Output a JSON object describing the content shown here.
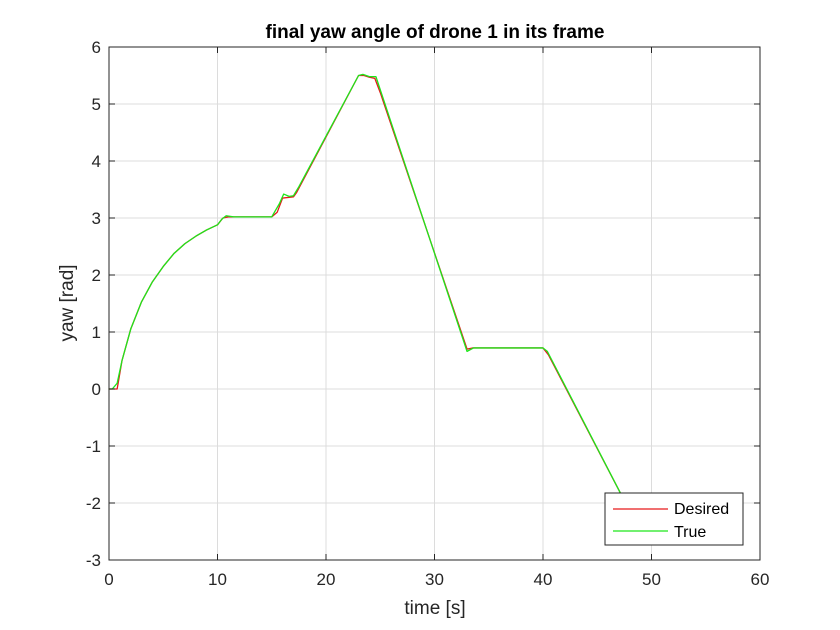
{
  "chart_data": {
    "type": "line",
    "title": "final yaw angle of drone 1 in its frame",
    "xlabel": "time [s]",
    "ylabel": "yaw [rad]",
    "xlim": [
      0,
      60
    ],
    "ylim": [
      -3,
      6
    ],
    "xticks": [
      0,
      10,
      20,
      30,
      40,
      50,
      60
    ],
    "yticks": [
      -3,
      -2,
      -1,
      0,
      1,
      2,
      3,
      4,
      5,
      6
    ],
    "grid": true,
    "legend_position": "bottom-right",
    "series": [
      {
        "name": "Desired",
        "color": "#e6191a",
        "points": [
          [
            0,
            0
          ],
          [
            0.3,
            0
          ],
          [
            0.75,
            0
          ],
          [
            1.2,
            0.5
          ],
          [
            2,
            1.05
          ],
          [
            3,
            1.53
          ],
          [
            4,
            1.88
          ],
          [
            5,
            2.15
          ],
          [
            6,
            2.38
          ],
          [
            7,
            2.55
          ],
          [
            8,
            2.68
          ],
          [
            9,
            2.79
          ],
          [
            10,
            2.88
          ],
          [
            10.5,
            3.0
          ],
          [
            11,
            3.02
          ],
          [
            15,
            3.02
          ],
          [
            15.5,
            3.1
          ],
          [
            16,
            3.35
          ],
          [
            17,
            3.37
          ],
          [
            17.3,
            3.45
          ],
          [
            23,
            5.5
          ],
          [
            23.5,
            5.5
          ],
          [
            24,
            5.47
          ],
          [
            24.5,
            5.45
          ],
          [
            25,
            5.2
          ],
          [
            33,
            0.7
          ],
          [
            33.5,
            0.72
          ],
          [
            40,
            0.72
          ],
          [
            40.5,
            0.6
          ],
          [
            47.2,
            -1.85
          ]
        ]
      },
      {
        "name": "True",
        "color": "#1de61a",
        "points": [
          [
            0,
            0
          ],
          [
            0.3,
            0
          ],
          [
            0.75,
            0.1
          ],
          [
            1.2,
            0.5
          ],
          [
            2,
            1.05
          ],
          [
            3,
            1.53
          ],
          [
            4,
            1.88
          ],
          [
            5,
            2.15
          ],
          [
            6,
            2.38
          ],
          [
            7,
            2.55
          ],
          [
            8,
            2.68
          ],
          [
            9,
            2.79
          ],
          [
            10,
            2.88
          ],
          [
            10.4,
            2.98
          ],
          [
            10.8,
            3.04
          ],
          [
            11.5,
            3.02
          ],
          [
            15,
            3.02
          ],
          [
            15.7,
            3.25
          ],
          [
            16.1,
            3.42
          ],
          [
            16.6,
            3.38
          ],
          [
            17,
            3.39
          ],
          [
            17.5,
            3.55
          ],
          [
            23,
            5.5
          ],
          [
            23.4,
            5.52
          ],
          [
            24,
            5.48
          ],
          [
            24.6,
            5.48
          ],
          [
            33,
            0.66
          ],
          [
            33.6,
            0.72
          ],
          [
            40,
            0.72
          ],
          [
            40.4,
            0.66
          ],
          [
            47.2,
            -1.85
          ]
        ]
      }
    ]
  }
}
